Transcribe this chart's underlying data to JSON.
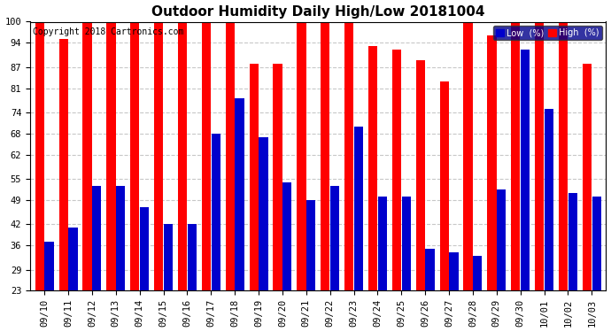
{
  "title": "Outdoor Humidity Daily High/Low 20181004",
  "copyright": "Copyright 2018 Cartronics.com",
  "categories": [
    "09/10",
    "09/11",
    "09/12",
    "09/13",
    "09/14",
    "09/15",
    "09/16",
    "09/17",
    "09/18",
    "09/19",
    "09/20",
    "09/21",
    "09/22",
    "09/23",
    "09/24",
    "09/25",
    "09/26",
    "09/27",
    "09/28",
    "09/29",
    "09/30",
    "10/01",
    "10/02",
    "10/03"
  ],
  "high": [
    100,
    95,
    100,
    100,
    100,
    100,
    100,
    100,
    100,
    88,
    88,
    100,
    100,
    100,
    93,
    92,
    89,
    83,
    100,
    96,
    100,
    100,
    100,
    88
  ],
  "low": [
    37,
    41,
    53,
    53,
    47,
    42,
    42,
    68,
    78,
    67,
    54,
    49,
    53,
    70,
    50,
    50,
    35,
    34,
    33,
    52,
    92,
    75,
    51,
    50
  ],
  "high_color": "#ff0000",
  "low_color": "#0000cc",
  "bg_color": "#ffffff",
  "grid_color": "#c8c8c8",
  "ylim_min": 23,
  "ylim_max": 100,
  "yticks": [
    23,
    29,
    36,
    42,
    49,
    55,
    62,
    68,
    74,
    81,
    87,
    94,
    100
  ],
  "title_fontsize": 11,
  "tick_fontsize": 7.5,
  "copyright_fontsize": 7,
  "legend_low_label": "Low  (%)",
  "legend_high_label": "High  (%)"
}
